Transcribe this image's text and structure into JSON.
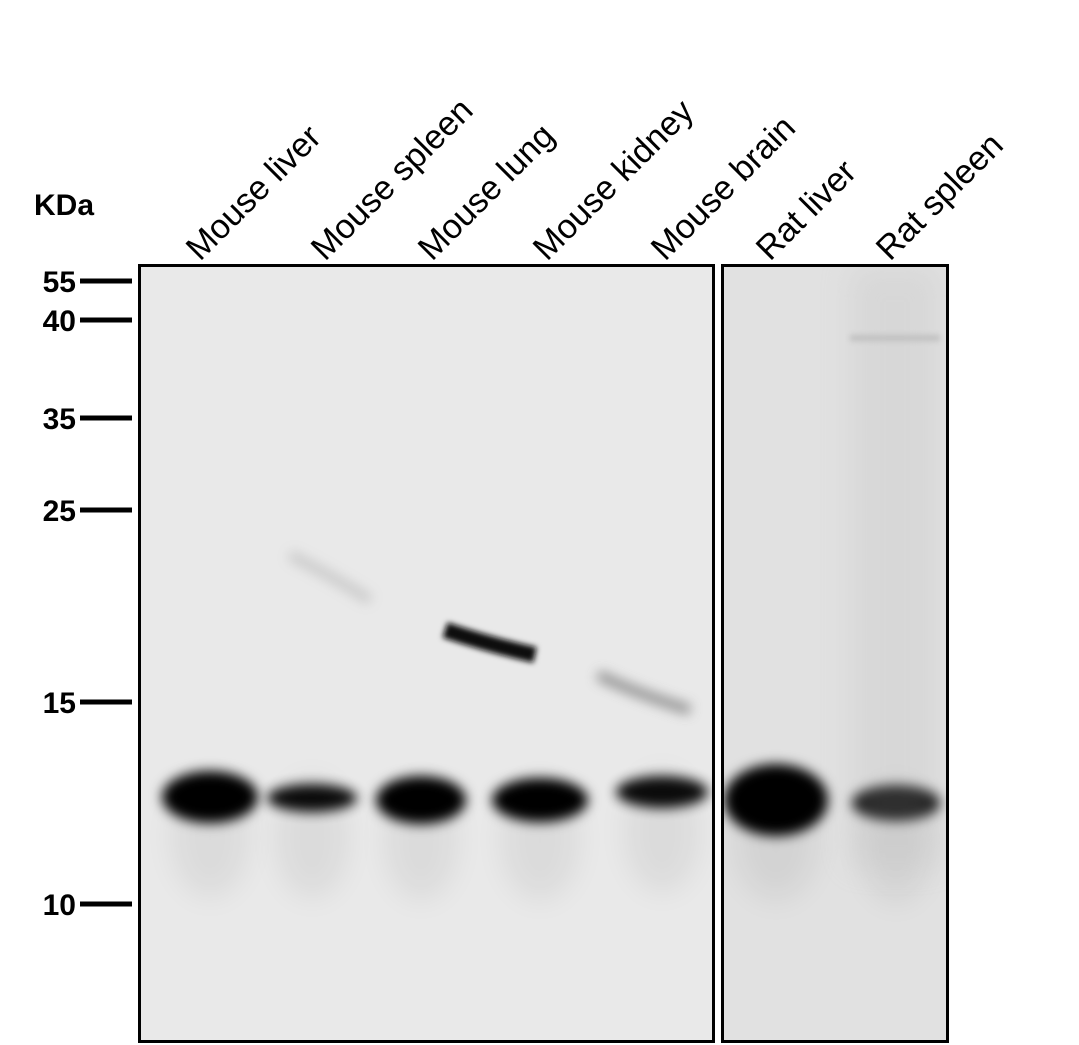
{
  "unit_label": "KDa",
  "markers": [
    "55",
    "40",
    "35",
    "25",
    "15",
    "10"
  ],
  "lanes": [
    "Mouse liver",
    "Mouse spleen",
    "Mouse lung",
    "Mouse kidney",
    "Mouse brain",
    "Rat liver",
    "Rat spleen"
  ]
}
